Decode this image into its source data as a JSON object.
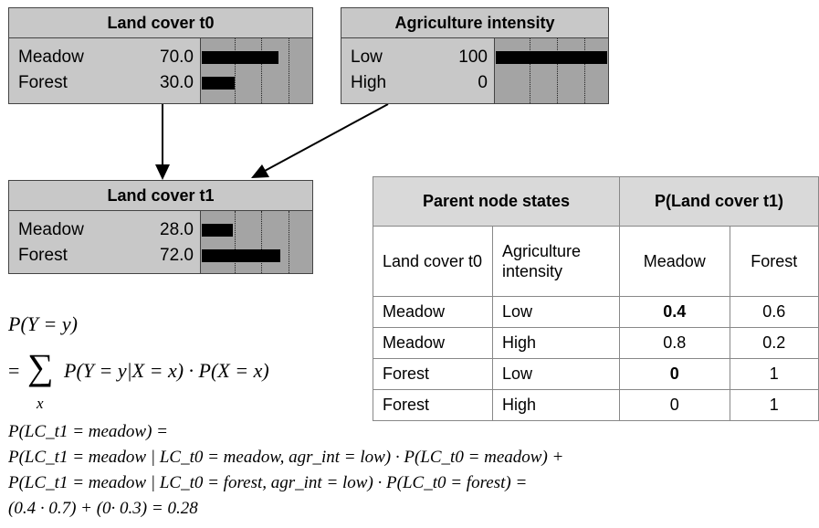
{
  "nodes": [
    {
      "title": "Land cover t0",
      "states": [
        {
          "label": "Meadow",
          "value": 70,
          "value_label": "70.0"
        },
        {
          "label": "Forest",
          "value": 30,
          "value_label": "30.0"
        }
      ]
    },
    {
      "title": "Agriculture intensity",
      "states": [
        {
          "label": "Low",
          "value": 100
        },
        {
          "label": "High",
          "value": 0
        }
      ]
    },
    {
      "title": "Land cover t1",
      "states": [
        {
          "label": "Meadow",
          "value": 28,
          "value_label": "28.0"
        },
        {
          "label": "Forest",
          "value": 72,
          "value_label": "72.0"
        }
      ]
    }
  ],
  "table": {
    "header": [
      "Parent node states",
      "P(Land cover t1)"
    ],
    "subheader": [
      "Land cover t0",
      "Agriculture intensity",
      "Meadow",
      "Forest"
    ],
    "rows": [
      [
        "Meadow",
        "Low",
        "0.4",
        "0.6"
      ],
      [
        "Meadow",
        "High",
        "0.8",
        "0.2"
      ],
      [
        "Forest",
        "Low",
        "0",
        "1"
      ],
      [
        "Forest",
        "High",
        "0",
        "1"
      ]
    ],
    "bold_cells": [
      [
        0,
        2
      ],
      [
        2,
        2
      ]
    ]
  },
  "formula": {
    "lhs": "P(Y = y)",
    "eq": "=",
    "sum": "∑",
    "sum_index": "x",
    "rhs": "P(Y = y|X = x) · P(X = x)"
  },
  "calculation": [
    "P(LC_t1 = meadow) =",
    "P(LC_t1 = meadow | LC_t0 = meadow, agr_int = low) · P(LC_t0 = meadow) +",
    "P(LC_t1 = meadow | LC_t0 = forest, agr_int = low) · P(LC_t0 = forest) =",
    "(0.4 ·  0.7) + (0· 0.3) = 0.28"
  ]
}
